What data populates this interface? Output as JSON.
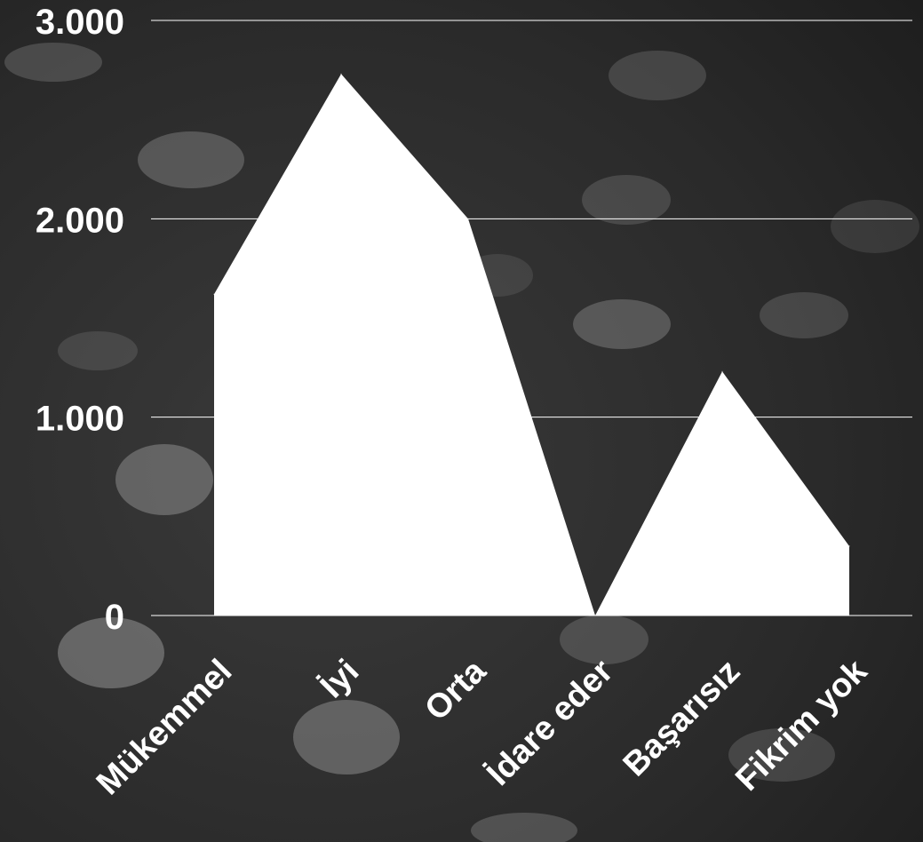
{
  "chart_data": {
    "type": "area",
    "title": "",
    "xlabel": "",
    "ylabel": "",
    "categories": [
      "Mükemmel",
      "İyi",
      "Orta",
      "İdare eder",
      "Başarısız",
      "Fikrim yok"
    ],
    "series": [
      {
        "values": [
          1620,
          2730,
          2000,
          0,
          1230,
          350
        ]
      }
    ],
    "ylim": [
      0,
      3000
    ],
    "yticks": [
      {
        "value": 0,
        "label": "0"
      },
      {
        "value": 1000,
        "label": "1.000"
      },
      {
        "value": 2000,
        "label": "2.000"
      },
      {
        "value": 3000,
        "label": "3.000"
      }
    ],
    "grid": true,
    "legend": "none",
    "colors": {
      "area": "#ffffff",
      "grid": "#ffffff",
      "text": "#ffffff",
      "background_dark": "#1c1c1c",
      "background_mid": "#3a3a3a",
      "background_light": "#8a8a8a"
    }
  }
}
